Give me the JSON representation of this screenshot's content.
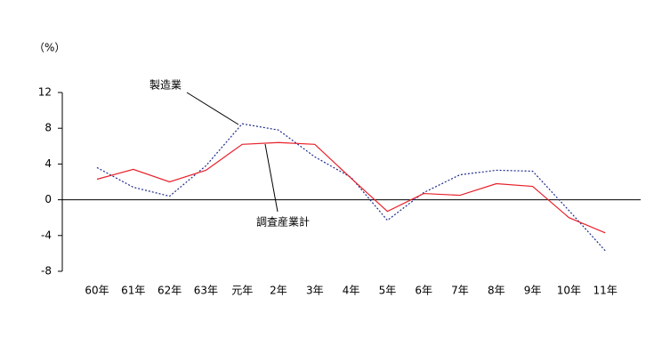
{
  "chart_data": {
    "type": "line",
    "y_label": "（%）",
    "categories": [
      "60年",
      "61年",
      "62年",
      "63年",
      "元年",
      "2年",
      "3年",
      "4年",
      "5年",
      "6年",
      "7年",
      "8年",
      "9年",
      "10年",
      "11年"
    ],
    "series": [
      {
        "name": "製造業",
        "color": "#1f2a8c",
        "dash": true,
        "values": [
          3.6,
          1.4,
          0.4,
          3.8,
          8.5,
          7.8,
          4.8,
          2.5,
          -2.3,
          0.8,
          2.8,
          3.3,
          3.2,
          -1.2,
          -5.7
        ]
      },
      {
        "name": "調査産業計",
        "color": "#e8202a",
        "dash": false,
        "values": [
          2.3,
          3.4,
          2.0,
          3.3,
          6.2,
          6.4,
          6.2,
          2.4,
          -1.3,
          0.7,
          0.5,
          1.8,
          1.5,
          -2.0,
          -3.7
        ]
      }
    ],
    "ylim": [
      -8,
      12
    ],
    "yticks": [
      -8,
      -4,
      0,
      4,
      8,
      12
    ]
  }
}
